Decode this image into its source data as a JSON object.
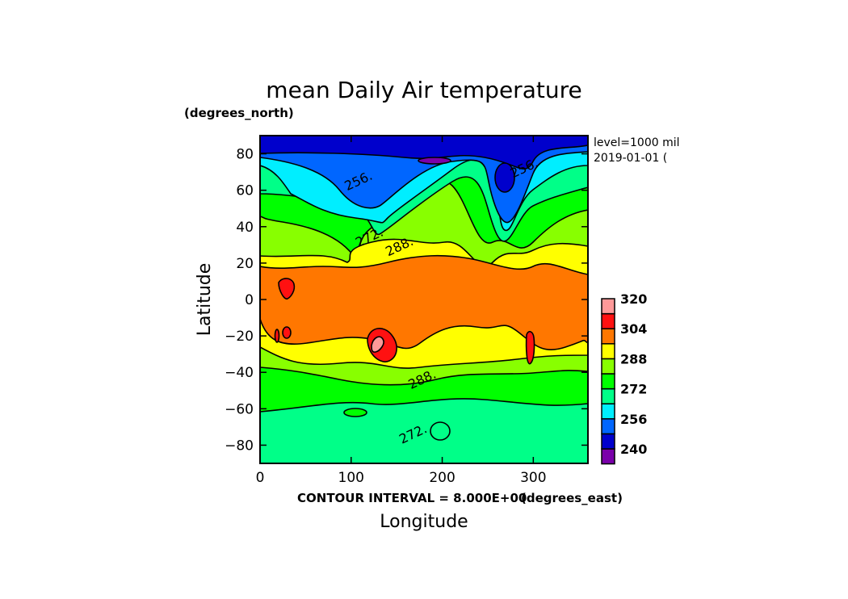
{
  "chart_data": {
    "type": "heatmap",
    "subtype": "filled-contour",
    "title": "mean Daily Air temperature",
    "xlabel": "Longitude",
    "ylabel": "Latitude",
    "x_units": "(degrees_east)",
    "y_units": "(degrees_north)",
    "xlim": [
      0,
      360
    ],
    "ylim": [
      -90,
      90
    ],
    "x_ticks": [
      0,
      100,
      200,
      300
    ],
    "y_ticks": [
      -80,
      -60,
      -40,
      -20,
      0,
      20,
      40,
      60,
      80
    ],
    "info_lines": [
      "level=1000 mil",
      "2019-01-01 ("
    ],
    "contour_interval_text": "CONTOUR INTERVAL = 8.000E+00",
    "levels": [
      232,
      240,
      248,
      256,
      264,
      272,
      280,
      288,
      296,
      304,
      312,
      320
    ],
    "colorbar_labels": [
      "320",
      "304",
      "288",
      "272",
      "256",
      "240"
    ],
    "colors": [
      "#7a00aa",
      "#0000cc",
      "#0066ff",
      "#00eeff",
      "#00ff88",
      "#00ff00",
      "#88ff00",
      "#ffff00",
      "#ff7700",
      "#ff1111",
      "#ff9999"
    ],
    "contour_labels": [
      {
        "text": "256.",
        "lon": 110,
        "lat": 63
      },
      {
        "text": "256.",
        "lon": 292,
        "lat": 70
      },
      {
        "text": "272.",
        "lon": 122,
        "lat": 32
      },
      {
        "text": "288.",
        "lon": 155,
        "lat": 27
      },
      {
        "text": "288.",
        "lon": 180,
        "lat": -46
      },
      {
        "text": "272.",
        "lon": 170,
        "lat": -76
      }
    ]
  }
}
